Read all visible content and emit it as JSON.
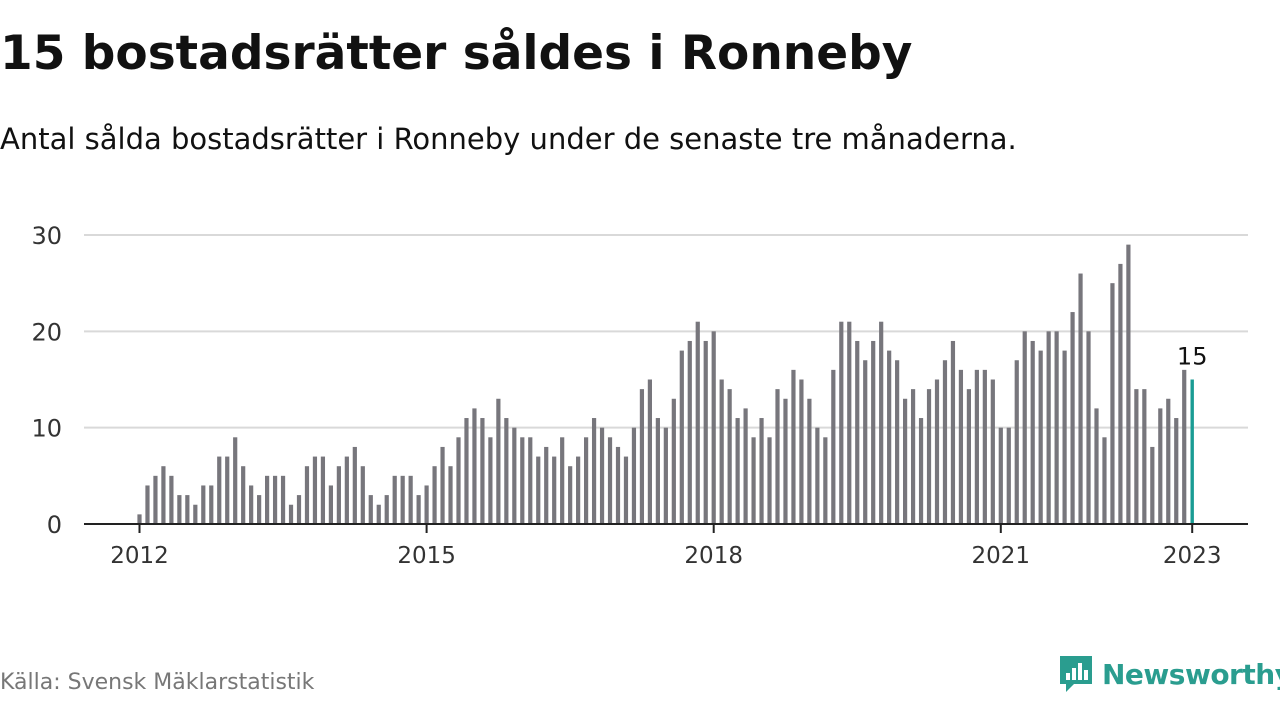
{
  "title": "15 bostadsrätter såldes i Ronneby",
  "subtitle": "Antal sålda bostadsrätter i Ronneby under de senaste tre månaderna.",
  "source": "Källa: Svensk Mäklarstatistik",
  "brand": "Newsworthy",
  "colors": {
    "bar": "#77767c",
    "highlight": "#1a9c94",
    "grid": "#d9d9d9",
    "axis": "#222222",
    "brand": "#2a9d8f"
  },
  "chart_data": {
    "type": "bar",
    "start": "2012-01",
    "xticks": [
      "2012",
      "2015",
      "2018",
      "2021",
      "2023"
    ],
    "yticks": [
      0,
      10,
      20,
      30
    ],
    "ylim": [
      0,
      30
    ],
    "grid": true,
    "highlight_label": "15",
    "values": [
      1,
      4,
      5,
      6,
      5,
      3,
      3,
      2,
      4,
      4,
      7,
      7,
      9,
      6,
      4,
      3,
      5,
      5,
      5,
      2,
      3,
      6,
      7,
      7,
      4,
      6,
      7,
      8,
      6,
      3,
      2,
      3,
      5,
      5,
      5,
      3,
      4,
      6,
      8,
      6,
      9,
      11,
      12,
      11,
      9,
      13,
      11,
      10,
      9,
      9,
      7,
      8,
      7,
      9,
      6,
      7,
      9,
      11,
      10,
      9,
      8,
      7,
      10,
      14,
      15,
      11,
      10,
      13,
      18,
      19,
      21,
      19,
      20,
      15,
      14,
      11,
      12,
      9,
      11,
      9,
      14,
      13,
      16,
      15,
      13,
      10,
      9,
      16,
      21,
      21,
      19,
      17,
      19,
      21,
      18,
      17,
      13,
      14,
      11,
      14,
      15,
      17,
      19,
      16,
      14,
      16,
      16,
      15,
      10,
      10,
      17,
      20,
      19,
      18,
      20,
      20,
      18,
      22,
      26,
      20,
      12,
      9,
      25,
      27,
      29,
      14,
      14,
      8,
      12,
      13,
      11,
      16,
      15
    ]
  }
}
